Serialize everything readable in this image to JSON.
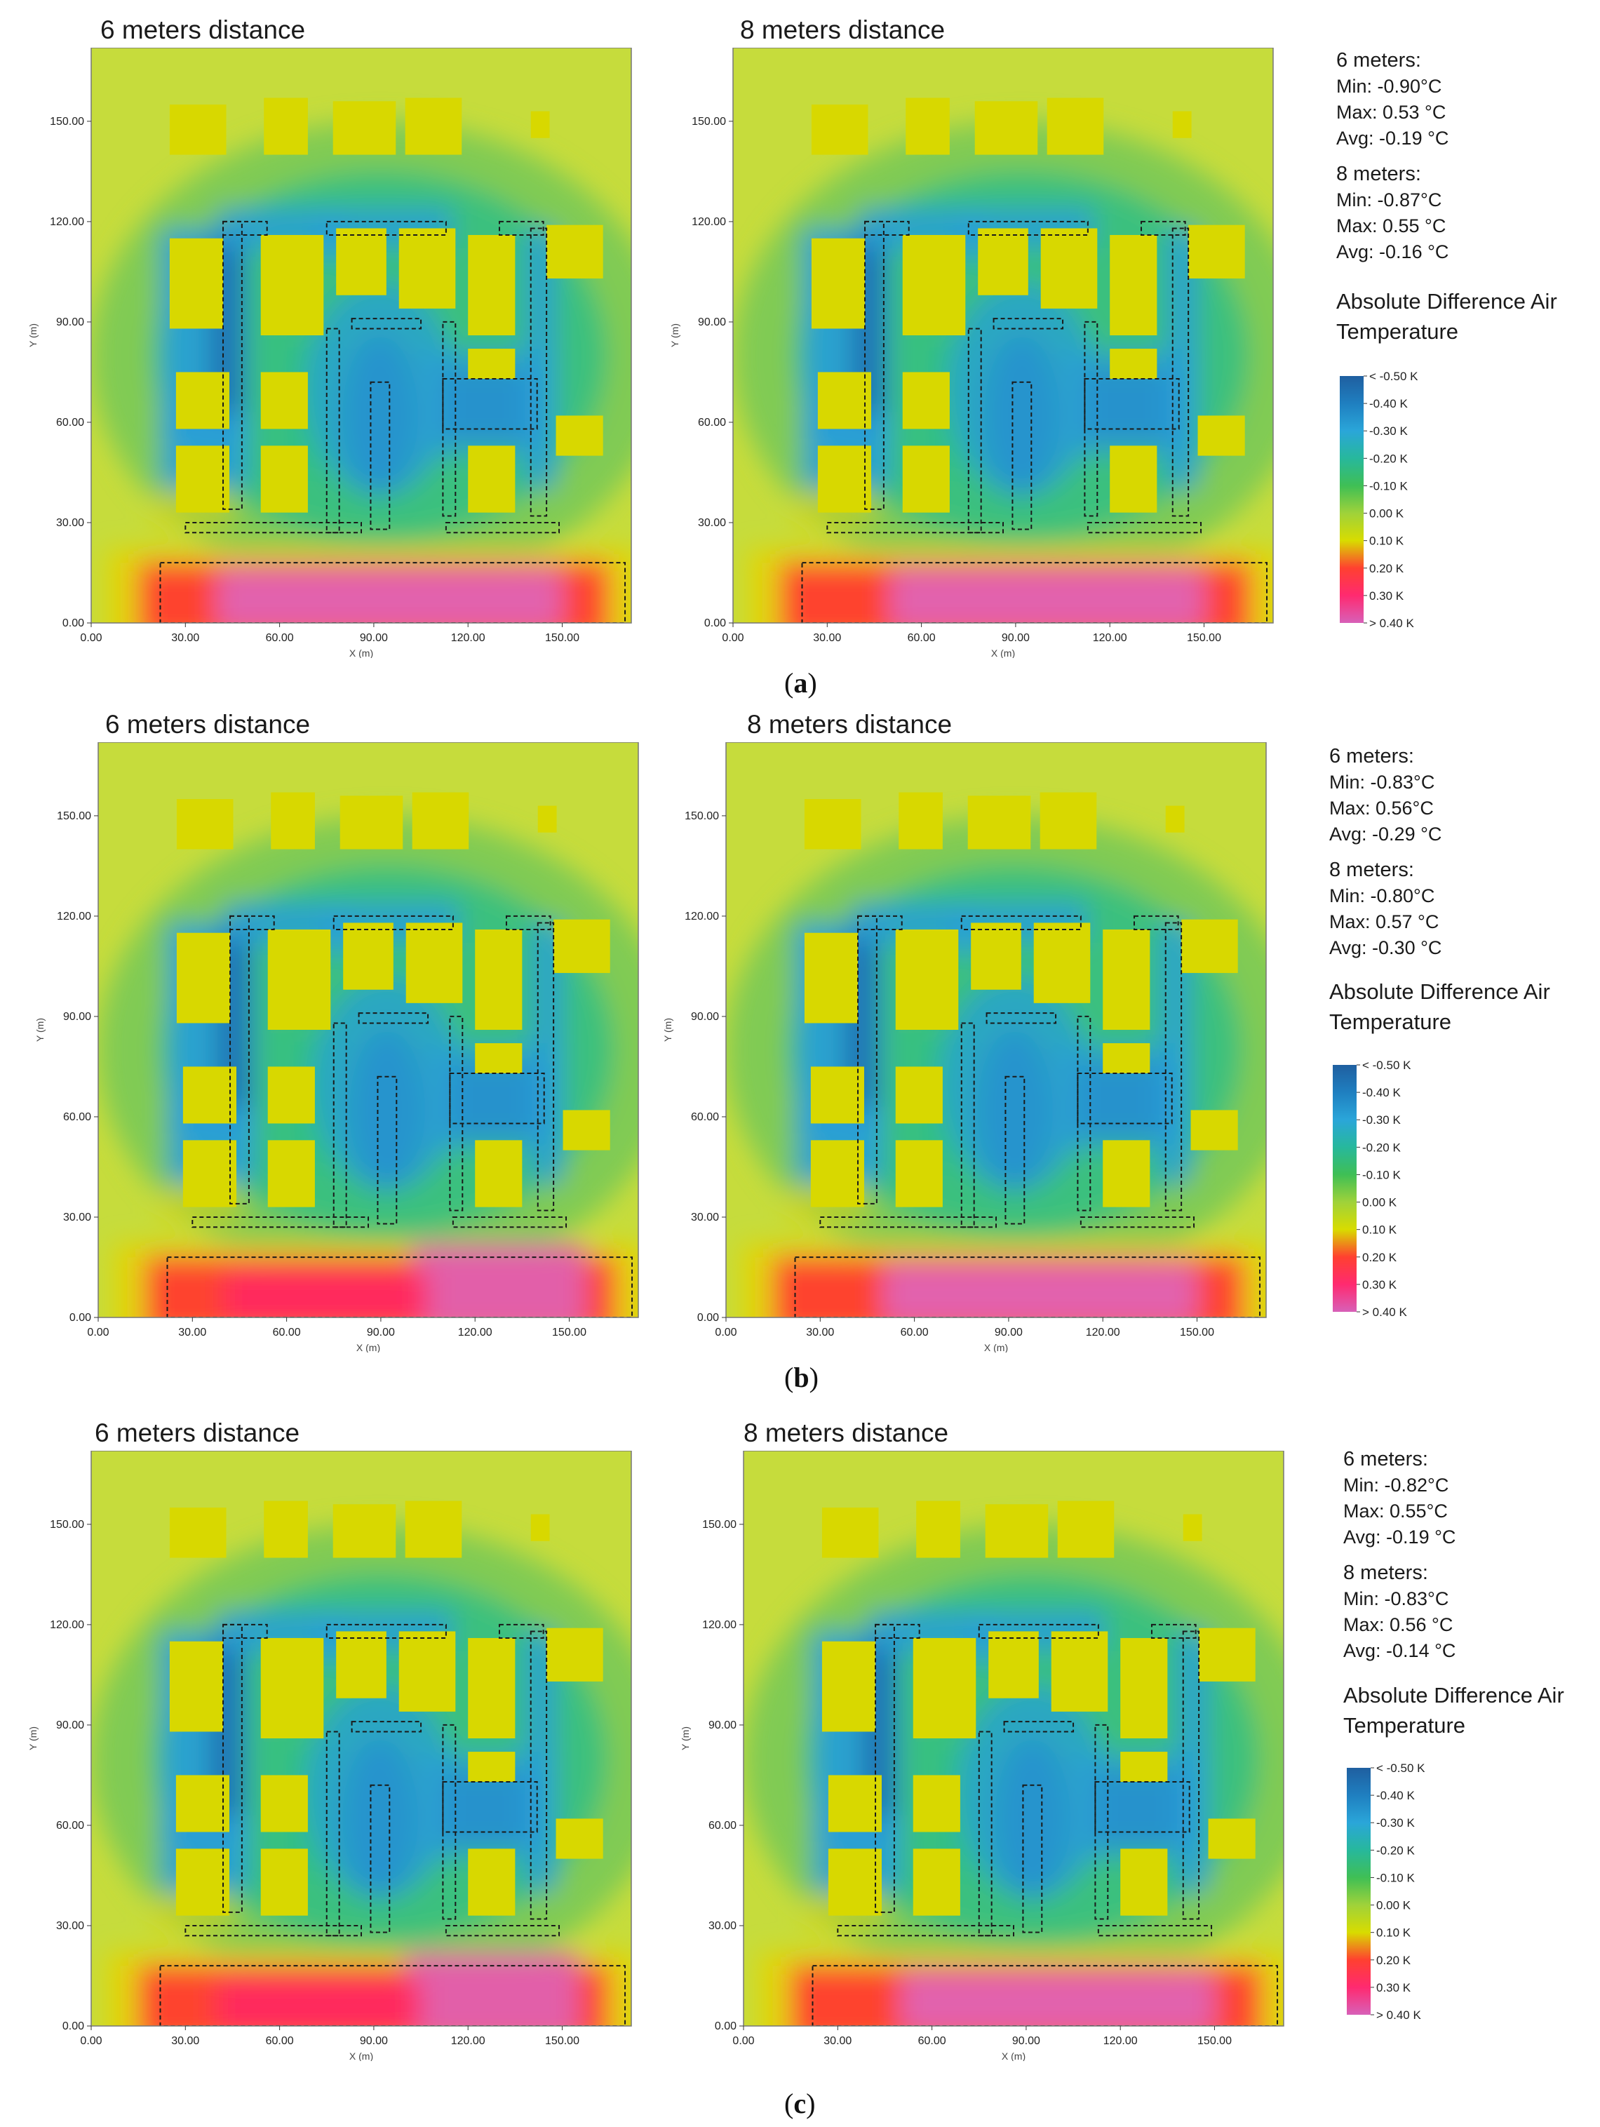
{
  "rows": [
    {
      "label": "a",
      "panels": [
        {
          "title": "6 meters distance"
        },
        {
          "title": "8 meters distance"
        }
      ],
      "stats": [
        {
          "heading": "6 meters:",
          "min": "Min: -0.90°C",
          "max": "Max: 0.53 °C",
          "avg": "Avg:  -0.19 °C"
        },
        {
          "heading": "8 meters:",
          "min": "Min: -0.87°C",
          "max": "Max: 0.55 °C",
          "avg": "Avg:  -0.16 °C"
        }
      ]
    },
    {
      "label": "b",
      "panels": [
        {
          "title": "6 meters distance"
        },
        {
          "title": "8 meters distance"
        }
      ],
      "stats": [
        {
          "heading": "6 meters:",
          "min": "Min: -0.83°C",
          "max": "Max: 0.56°C",
          "avg": "Avg:  -0.29 °C"
        },
        {
          "heading": "8 meters:",
          "min": "Min: -0.80°C",
          "max": "Max: 0.57 °C",
          "avg": "Avg:  -0.30 °C"
        }
      ]
    },
    {
      "label": "c",
      "panels": [
        {
          "title": "6 meters distance"
        },
        {
          "title": "8 meters distance"
        }
      ],
      "stats": [
        {
          "heading": "6 meters:",
          "min": "Min: -0.82°C",
          "max": "Max: 0.55°C",
          "avg": "Avg:  -0.19 °C"
        },
        {
          "heading": "8 meters:",
          "min": "Min: -0.83°C",
          "max": "Max: 0.56 °C",
          "avg": "Avg:  -0.14 °C"
        }
      ]
    }
  ],
  "legend": {
    "title_line1": "Absolute Difference Air",
    "title_line2": "Temperature",
    "labels": [
      "< -0.50 K",
      "-0.40 K",
      "-0.30 K",
      "-0.20 K",
      "-0.10 K",
      "0.00 K",
      "0.10 K",
      "0.20 K",
      "0.30 K",
      "> 0.40 K"
    ],
    "colors": [
      "#1f5fa0",
      "#1f7fc0",
      "#2aa6d9",
      "#27b89c",
      "#3fbf55",
      "#9fd23a",
      "#d8dc00",
      "#ff4030",
      "#ff2a70",
      "#d860b8"
    ]
  },
  "axes": {
    "x_ticks": [
      "0.00",
      "30.00",
      "60.00",
      "90.00",
      "120.00",
      "150.00"
    ],
    "y_ticks": [
      "0.00",
      "30.00",
      "60.00",
      "90.00",
      "120.00",
      "150.00"
    ],
    "x_label": "X (m)",
    "y_label": "Y (m)"
  }
}
